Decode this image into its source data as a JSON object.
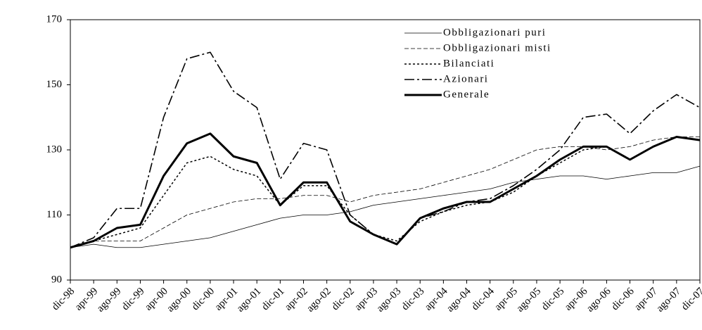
{
  "chart_data": {
    "type": "line",
    "categories": [
      "dic-98",
      "apr-99",
      "ago-99",
      "dic-99",
      "apr-00",
      "ago-00",
      "dic-00",
      "apr-01",
      "ago-01",
      "dic-01",
      "apr-02",
      "ago-02",
      "dic-02",
      "apr-03",
      "ago-03",
      "dic-03",
      "apr-04",
      "ago-04",
      "dic-04",
      "apr-05",
      "ago-05",
      "dic-05",
      "apr-06",
      "ago-06",
      "dic-06",
      "apr-07",
      "ago-07",
      "dic-07"
    ],
    "ylim": [
      90,
      170
    ],
    "yticks": [
      90,
      110,
      130,
      150,
      170
    ],
    "series": [
      {
        "name": "Obbligazionari puri",
        "color": "#000000",
        "width": 0.8,
        "dash": "none",
        "values": [
          100,
          101,
          100,
          100,
          101,
          102,
          103,
          105,
          107,
          109,
          110,
          110,
          111,
          113,
          114,
          115,
          116,
          117,
          118,
          120,
          121,
          122,
          122,
          121,
          122,
          123,
          123,
          125
        ]
      },
      {
        "name": "Obbligazionari misti",
        "color": "#000000",
        "width": 0.8,
        "dash": "6,3",
        "values": [
          100,
          102,
          102,
          102,
          106,
          110,
          112,
          114,
          115,
          115,
          116,
          116,
          114,
          116,
          117,
          118,
          120,
          122,
          124,
          127,
          130,
          131,
          131,
          130,
          131,
          133,
          134,
          134
        ]
      },
      {
        "name": "Bilanciati",
        "color": "#000000",
        "width": 1.5,
        "dash": "3,3",
        "values": [
          100,
          102,
          104,
          106,
          116,
          126,
          128,
          124,
          122,
          113,
          119,
          119,
          110,
          104,
          102,
          108,
          111,
          113,
          114,
          117,
          122,
          126,
          130,
          131,
          127,
          131,
          134,
          133
        ]
      },
      {
        "name": "Azionari",
        "color": "#000000",
        "width": 1.6,
        "dash": "14,4,3,4",
        "values": [
          100,
          103,
          112,
          112,
          140,
          158,
          160,
          148,
          143,
          121,
          132,
          130,
          110,
          104,
          101,
          109,
          111,
          114,
          115,
          119,
          124,
          130,
          140,
          141,
          135,
          142,
          147,
          143
        ]
      },
      {
        "name": "Generale",
        "color": "#000000",
        "width": 3,
        "dash": "none",
        "values": [
          100,
          102,
          106,
          107,
          122,
          132,
          135,
          128,
          126,
          113,
          120,
          120,
          108,
          104,
          101,
          109,
          112,
          114,
          114,
          118,
          122,
          127,
          131,
          131,
          127,
          131,
          134,
          133
        ]
      }
    ]
  }
}
